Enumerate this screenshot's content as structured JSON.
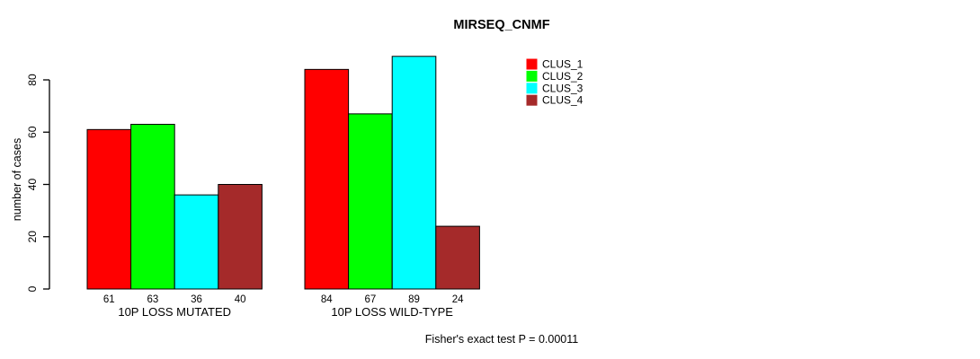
{
  "title": "MIRSEQ_CNMF",
  "footer": "Fisher's exact test P = 0.00011",
  "chart_data": {
    "type": "bar",
    "title": "MIRSEQ_CNMF",
    "xlabel": "",
    "ylabel": "number of cases",
    "ylim": [
      0,
      89
    ],
    "yticks": [
      0,
      20,
      40,
      60,
      80
    ],
    "grid": false,
    "legend_position": "top-right",
    "categories": [
      "10P LOSS MUTATED",
      "10P LOSS WILD-TYPE"
    ],
    "series": [
      {
        "name": "CLUS_1",
        "color": "#FF0000",
        "values": [
          61,
          84
        ]
      },
      {
        "name": "CLUS_2",
        "color": "#00FF00",
        "values": [
          63,
          67
        ]
      },
      {
        "name": "CLUS_3",
        "color": "#00FFFF",
        "values": [
          36,
          89
        ]
      },
      {
        "name": "CLUS_4",
        "color": "#A52A2A",
        "values": [
          40,
          24
        ]
      }
    ],
    "bar_value_labels": [
      [
        61,
        63,
        36,
        40
      ],
      [
        84,
        67,
        89,
        24
      ]
    ],
    "annotation": "Fisher's exact test P = 0.00011"
  },
  "colors": {
    "background": "#FFFFFF",
    "axis": "#000000",
    "text": "#000000",
    "bar_border": "#000000"
  }
}
